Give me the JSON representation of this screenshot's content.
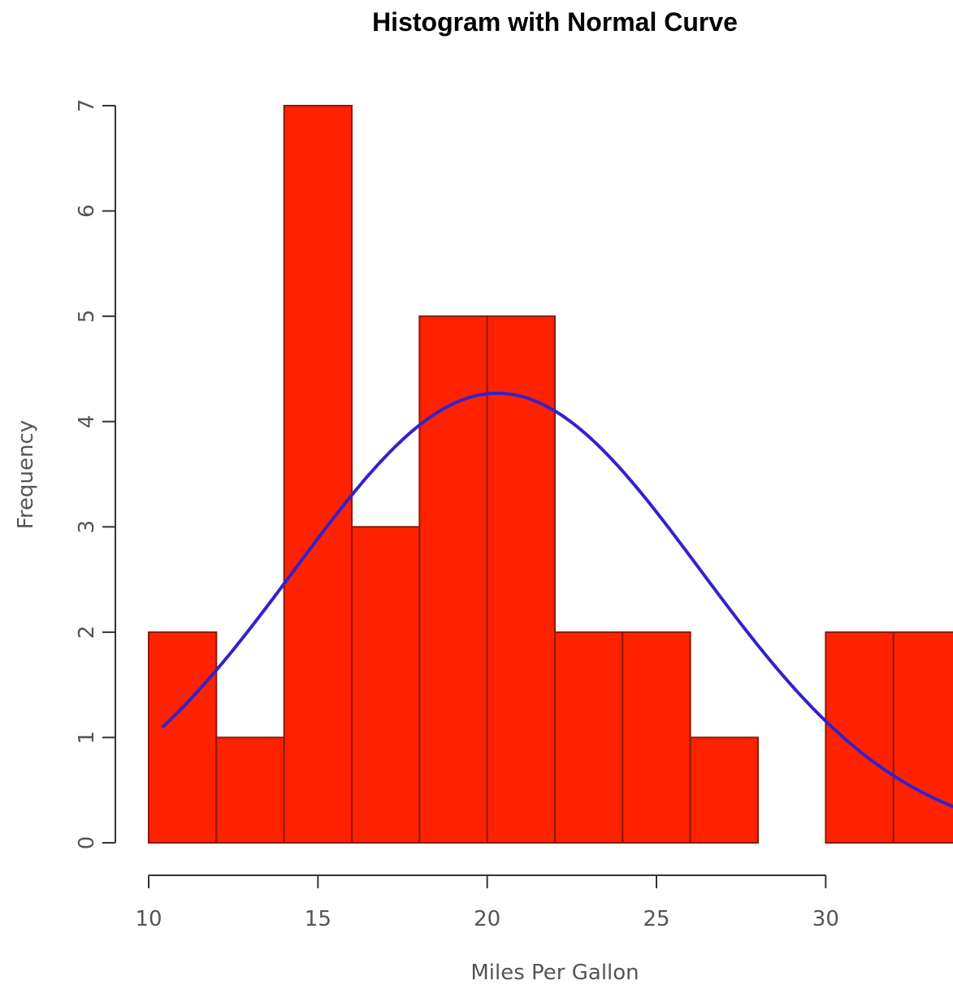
{
  "chart_data": {
    "type": "bar",
    "title": "Histogram with Normal Curve",
    "xlabel": "Miles Per Gallon",
    "ylabel": "Frequency",
    "bins": [
      {
        "x0": 10,
        "x1": 12,
        "count": 2
      },
      {
        "x0": 12,
        "x1": 14,
        "count": 1
      },
      {
        "x0": 14,
        "x1": 16,
        "count": 7
      },
      {
        "x0": 16,
        "x1": 18,
        "count": 3
      },
      {
        "x0": 18,
        "x1": 20,
        "count": 5
      },
      {
        "x0": 20,
        "x1": 22,
        "count": 5
      },
      {
        "x0": 22,
        "x1": 24,
        "count": 2
      },
      {
        "x0": 24,
        "x1": 26,
        "count": 2
      },
      {
        "x0": 26,
        "x1": 28,
        "count": 1
      },
      {
        "x0": 28,
        "x1": 30,
        "count": 0
      },
      {
        "x0": 30,
        "x1": 32,
        "count": 2
      },
      {
        "x0": 32,
        "x1": 34,
        "count": 2
      }
    ],
    "xticks": [
      10,
      15,
      20,
      25,
      30
    ],
    "yticks": [
      0,
      1,
      2,
      3,
      4,
      5,
      6,
      7
    ],
    "xlim": [
      10,
      34
    ],
    "ylim": [
      0,
      7
    ],
    "bar_color": "#ff2200",
    "bar_border_color": "#8b1a0a",
    "curve_color": "#3322cc",
    "normal_curve": {
      "mean": 20.3,
      "sd": 6.0,
      "scale": 64.2,
      "x_from": 10.4,
      "x_to": 34
    },
    "grid": false,
    "legend": "none"
  }
}
